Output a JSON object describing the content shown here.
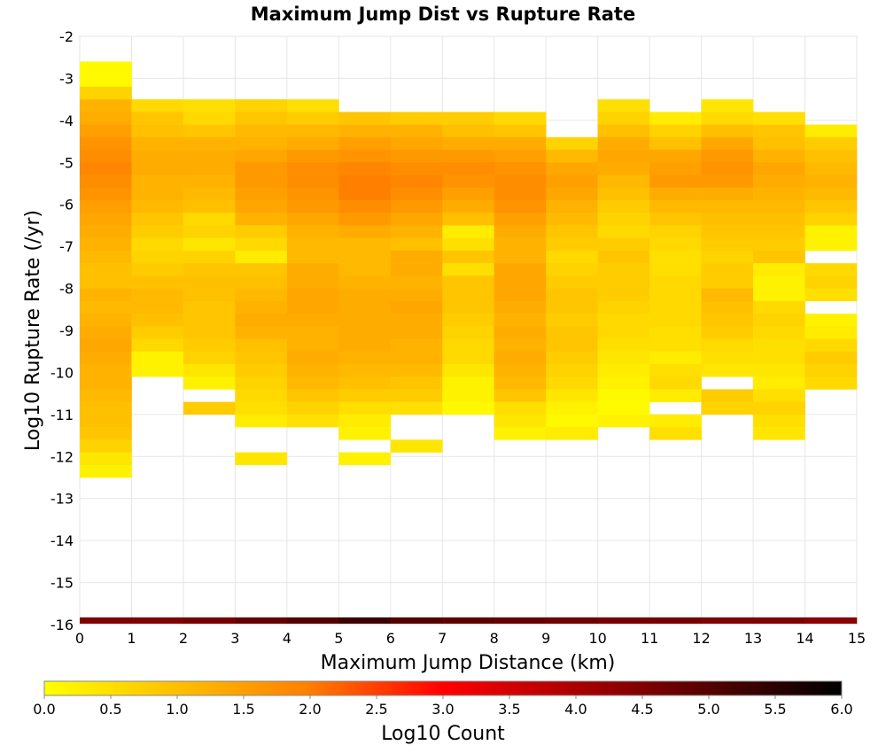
{
  "chart_data": {
    "type": "heatmap",
    "title": "Maximum Jump Dist vs Rupture Rate",
    "xlabel": "Maximum Jump Distance (km)",
    "ylabel": "Log10 Rupture Rate (/yr)",
    "xlim": [
      0,
      15
    ],
    "ylim": [
      -16,
      -2
    ],
    "x_ticks": [
      "0",
      "1",
      "2",
      "3",
      "4",
      "5",
      "6",
      "7",
      "8",
      "9",
      "10",
      "11",
      "12",
      "13",
      "14",
      "15"
    ],
    "y_ticks": [
      "-2",
      "-3",
      "-4",
      "-5",
      "-6",
      "-7",
      "-8",
      "-9",
      "-10",
      "-11",
      "-12",
      "-13",
      "-14",
      "-15",
      "-16"
    ],
    "x_bin_width": 1,
    "y_bin_height": 0.3,
    "grid": true,
    "colorbar": {
      "label": "Log10 Count",
      "min": 0,
      "max": 6,
      "ticks": [
        "0.0",
        "0.5",
        "1.0",
        "1.5",
        "2.0",
        "2.5",
        "3.0",
        "3.5",
        "4.0",
        "4.5",
        "5.0",
        "5.5",
        "6.0"
      ],
      "colormap": [
        "#ffff00",
        "#ff8000",
        "#ff0000",
        "#800000",
        "#000000"
      ]
    },
    "columns": [
      {
        "x": 0,
        "y_top": -2.6,
        "values": [
          0.1,
          0.1,
          0.7,
          1.2,
          1.3,
          1.5,
          1.7,
          1.8,
          1.9,
          1.8,
          1.7,
          1.5,
          1.4,
          1.3,
          1.2,
          1.1,
          1.0,
          1.0,
          1.2,
          1.1,
          1.2,
          1.3,
          1.4,
          1.3,
          1.2,
          1.2,
          1.1,
          1.0,
          1.0,
          0.9,
          0.7,
          0.4,
          0.2
        ]
      },
      {
        "x": 1,
        "y_top": -3.5,
        "values": [
          0.6,
          0.9,
          1.0,
          1.2,
          1.3,
          1.3,
          1.2,
          1.2,
          1.1,
          0.9,
          0.8,
          0.6,
          0.7,
          0.8,
          1.0,
          1.1,
          1.1,
          1.0,
          0.8,
          0.6,
          0.2,
          0.2
        ]
      },
      {
        "x": 2,
        "y_top": -3.5,
        "values": [
          0.5,
          0.6,
          0.9,
          1.2,
          1.3,
          1.3,
          1.2,
          1.1,
          1.0,
          0.6,
          0.7,
          0.4,
          0.7,
          0.9,
          1.0,
          1.0,
          0.9,
          0.9,
          0.9,
          0.8,
          0.7,
          0.4,
          0.2,
          null,
          0.8
        ]
      },
      {
        "x": 3,
        "y_top": -3.5,
        "values": [
          0.7,
          0.9,
          1.1,
          1.2,
          1.4,
          1.6,
          1.6,
          1.5,
          1.4,
          1.2,
          0.8,
          0.6,
          0.3,
          0.9,
          1.0,
          1.1,
          1.2,
          1.3,
          1.2,
          1.0,
          0.9,
          0.8,
          0.7,
          0.6,
          0.5,
          0.3,
          null,
          null,
          0.4
        ]
      },
      {
        "x": 4,
        "y_top": -3.5,
        "values": [
          0.5,
          0.8,
          1.1,
          1.3,
          1.6,
          1.8,
          1.8,
          1.7,
          1.6,
          1.4,
          1.2,
          1.1,
          1.1,
          1.3,
          1.3,
          1.4,
          1.4,
          1.3,
          1.2,
          1.2,
          1.3,
          1.2,
          1.1,
          0.9,
          0.7,
          0.5
        ]
      },
      {
        "x": 5,
        "y_top": -3.8,
        "values": [
          0.9,
          1.2,
          1.5,
          1.7,
          1.9,
          2.0,
          2.0,
          1.8,
          1.6,
          1.3,
          1.1,
          1.1,
          1.1,
          1.2,
          1.3,
          1.3,
          1.3,
          1.3,
          1.3,
          1.2,
          1.1,
          1.0,
          0.8,
          0.5,
          0.3,
          0.2,
          null,
          0.2
        ]
      },
      {
        "x": 6,
        "y_top": -3.8,
        "values": [
          0.8,
          1.2,
          1.4,
          1.6,
          1.8,
          1.9,
          1.8,
          1.6,
          1.4,
          1.2,
          1.0,
          1.3,
          1.3,
          1.2,
          1.3,
          1.4,
          1.3,
          1.3,
          1.2,
          1.2,
          1.1,
          0.9,
          0.8,
          0.5,
          null,
          null,
          0.4
        ]
      },
      {
        "x": 7,
        "y_top": -3.8,
        "values": [
          0.8,
          1.0,
          1.3,
          1.6,
          1.8,
          1.7,
          1.5,
          1.3,
          1.0,
          0.3,
          0.5,
          0.9,
          0.5,
          0.9,
          0.9,
          0.9,
          0.8,
          0.7,
          0.6,
          0.6,
          0.4,
          0.2,
          0.2,
          0.1
        ]
      },
      {
        "x": 8,
        "y_top": -3.8,
        "values": [
          0.6,
          0.9,
          1.3,
          1.5,
          1.7,
          1.8,
          1.8,
          1.7,
          1.5,
          1.3,
          1.2,
          1.2,
          1.4,
          1.4,
          1.4,
          1.3,
          1.2,
          1.3,
          1.2,
          1.3,
          1.2,
          1.1,
          0.9,
          0.5,
          0.4,
          0.2
        ]
      },
      {
        "x": 9,
        "y_top": -4.4,
        "values": [
          0.7,
          1.1,
          1.4,
          1.5,
          1.4,
          1.2,
          1.1,
          0.9,
          0.8,
          0.6,
          0.7,
          0.8,
          0.9,
          0.9,
          0.8,
          0.9,
          0.9,
          0.8,
          0.7,
          0.6,
          0.4,
          0.2,
          0.1,
          0.3
        ]
      },
      {
        "x": 10,
        "y_top": -3.5,
        "values": [
          0.5,
          0.7,
          1.0,
          1.3,
          1.4,
          1.3,
          1.1,
          1.0,
          0.8,
          0.7,
          0.6,
          0.8,
          0.9,
          0.8,
          0.8,
          0.8,
          0.7,
          0.6,
          0.6,
          0.5,
          0.4,
          0.3,
          0.2,
          0.1,
          0.1,
          0.2
        ]
      },
      {
        "x": 11,
        "y_top": -3.8,
        "values": [
          0.3,
          0.7,
          1.0,
          1.4,
          1.5,
          1.6,
          1.3,
          1.1,
          0.9,
          0.7,
          0.6,
          0.5,
          0.5,
          0.6,
          0.6,
          0.6,
          0.6,
          0.5,
          0.5,
          0.3,
          0.5,
          0.6,
          0.3,
          null,
          0.3,
          0.5
        ]
      },
      {
        "x": 12,
        "y_top": -3.5,
        "values": [
          0.4,
          0.6,
          1.0,
          1.4,
          1.6,
          1.7,
          1.6,
          1.3,
          1.1,
          1.0,
          0.9,
          0.8,
          0.7,
          0.8,
          0.8,
          1.1,
          1.0,
          0.9,
          0.8,
          0.6,
          0.5,
          0.4,
          null,
          0.8,
          0.7
        ]
      },
      {
        "x": 13,
        "y_top": -3.8,
        "values": [
          0.5,
          0.9,
          1.0,
          1.2,
          1.4,
          1.3,
          1.2,
          1.1,
          1.0,
          0.9,
          0.8,
          0.9,
          0.3,
          0.2,
          0.2,
          0.6,
          0.7,
          0.6,
          0.5,
          0.5,
          0.4,
          0.3,
          0.5,
          0.7,
          0.5,
          0.4
        ]
      },
      {
        "x": 14,
        "y_top": -4.1,
        "values": [
          0.3,
          0.8,
          1.0,
          1.1,
          1.2,
          1.1,
          0.9,
          0.7,
          0.2,
          0.2,
          null,
          0.6,
          0.7,
          0.5,
          null,
          0.2,
          0.3,
          0.6,
          0.8,
          0.7,
          0.6
        ]
      }
    ],
    "bottom_row": {
      "y": -16,
      "values": [
        4.5,
        4.5,
        4.6,
        4.8,
        5.0,
        5.3,
        5.0,
        4.9,
        4.8,
        4.7,
        4.6,
        4.6,
        4.5,
        4.5,
        4.4
      ]
    }
  }
}
